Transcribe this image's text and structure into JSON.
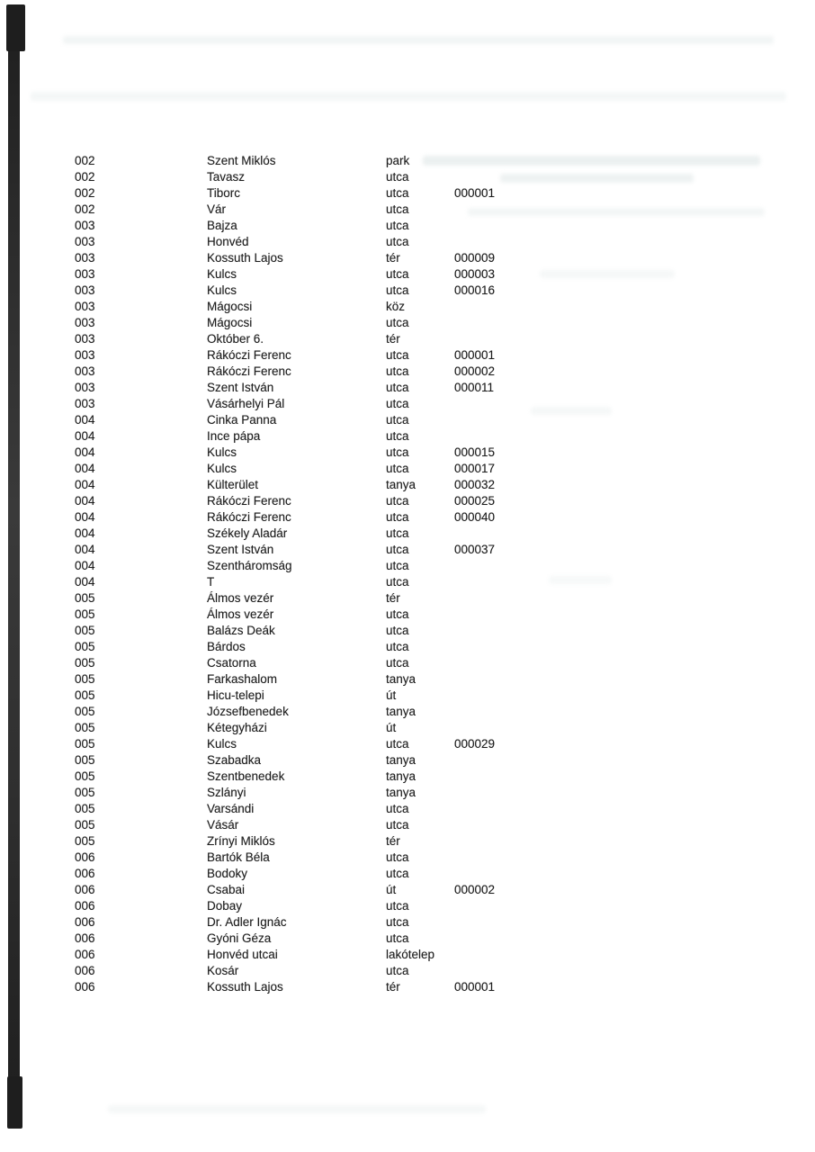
{
  "page": {
    "kind": "scanned street register page",
    "colors": {
      "paper": "#ffffff",
      "ink": "#1f1f1f",
      "bar": "#1e1e1e"
    }
  },
  "table": {
    "columns": [
      "district_code",
      "street_name",
      "street_type",
      "house_number"
    ],
    "rows": [
      [
        "002",
        "Szent Miklós",
        "park",
        ""
      ],
      [
        "002",
        "Tavasz",
        "utca",
        ""
      ],
      [
        "002",
        "Tiborc",
        "utca",
        "000001"
      ],
      [
        "002",
        "Vár",
        "utca",
        ""
      ],
      [
        "003",
        "Bajza",
        "utca",
        ""
      ],
      [
        "003",
        "Honvéd",
        "utca",
        ""
      ],
      [
        "003",
        "Kossuth Lajos",
        "tér",
        "000009"
      ],
      [
        "003",
        "Kulcs",
        "utca",
        "000003"
      ],
      [
        "003",
        "Kulcs",
        "utca",
        "000016"
      ],
      [
        "003",
        "Mágocsi",
        "köz",
        ""
      ],
      [
        "003",
        "Mágocsi",
        "utca",
        ""
      ],
      [
        "003",
        "Október 6.",
        "tér",
        ""
      ],
      [
        "003",
        "Rákóczi Ferenc",
        "utca",
        "000001"
      ],
      [
        "003",
        "Rákóczi Ferenc",
        "utca",
        "000002"
      ],
      [
        "003",
        "Szent István",
        "utca",
        "000011"
      ],
      [
        "003",
        "Vásárhelyi Pál",
        "utca",
        ""
      ],
      [
        "004",
        "Cinka Panna",
        "utca",
        ""
      ],
      [
        "004",
        "Ince pápa",
        "utca",
        ""
      ],
      [
        "004",
        "Kulcs",
        "utca",
        "000015"
      ],
      [
        "004",
        "Kulcs",
        "utca",
        "000017"
      ],
      [
        "004",
        "Külterület",
        "tanya",
        "000032"
      ],
      [
        "004",
        "Rákóczi Ferenc",
        "utca",
        "000025"
      ],
      [
        "004",
        "Rákóczi Ferenc",
        "utca",
        "000040"
      ],
      [
        "004",
        "Székely Aladár",
        "utca",
        ""
      ],
      [
        "004",
        "Szent István",
        "utca",
        "000037"
      ],
      [
        "004",
        "Szentháromság",
        "utca",
        ""
      ],
      [
        "004",
        "T",
        "utca",
        ""
      ],
      [
        "005",
        "Álmos vezér",
        "tér",
        ""
      ],
      [
        "005",
        "Álmos vezér",
        "utca",
        ""
      ],
      [
        "005",
        "Balázs Deák",
        "utca",
        ""
      ],
      [
        "005",
        "Bárdos",
        "utca",
        ""
      ],
      [
        "005",
        "Csatorna",
        "utca",
        ""
      ],
      [
        "005",
        "Farkashalom",
        "tanya",
        ""
      ],
      [
        "005",
        "Hicu-telepi",
        "út",
        ""
      ],
      [
        "005",
        "Józsefbenedek",
        "tanya",
        ""
      ],
      [
        "005",
        "Kétegyházi",
        "út",
        ""
      ],
      [
        "005",
        "Kulcs",
        "utca",
        "000029"
      ],
      [
        "005",
        "Szabadka",
        "tanya",
        ""
      ],
      [
        "005",
        "Szentbenedek",
        "tanya",
        ""
      ],
      [
        "005",
        "Szlányi",
        "tanya",
        ""
      ],
      [
        "005",
        "Varsándi",
        "utca",
        ""
      ],
      [
        "005",
        "Vásár",
        "utca",
        ""
      ],
      [
        "005",
        "Zrínyi Miklós",
        "tér",
        ""
      ],
      [
        "006",
        "Bartók Béla",
        "utca",
        ""
      ],
      [
        "006",
        "Bodoky",
        "utca",
        ""
      ],
      [
        "006",
        "Csabai",
        "út",
        "000002"
      ],
      [
        "006",
        "Dobay",
        "utca",
        ""
      ],
      [
        "006",
        "Dr. Adler Ignác",
        "utca",
        ""
      ],
      [
        "006",
        "Gyóni Géza",
        "utca",
        ""
      ],
      [
        "006",
        "Honvéd utcai",
        "lakótelep",
        ""
      ],
      [
        "006",
        "Kosár",
        "utca",
        ""
      ],
      [
        "006",
        "Kossuth Lajos",
        "tér",
        "000001"
      ]
    ]
  }
}
